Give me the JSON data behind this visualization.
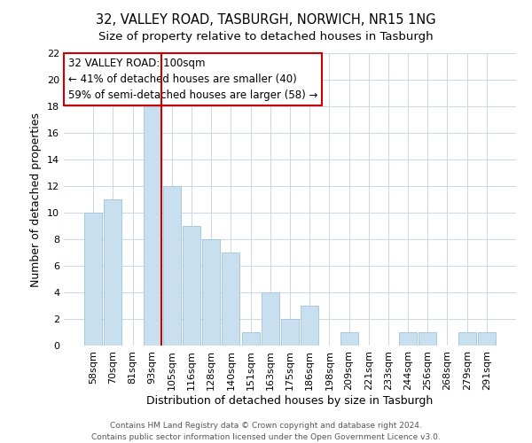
{
  "title": "32, VALLEY ROAD, TASBURGH, NORWICH, NR15 1NG",
  "subtitle": "Size of property relative to detached houses in Tasburgh",
  "xlabel": "Distribution of detached houses by size in Tasburgh",
  "ylabel": "Number of detached properties",
  "bar_labels": [
    "58sqm",
    "70sqm",
    "81sqm",
    "93sqm",
    "105sqm",
    "116sqm",
    "128sqm",
    "140sqm",
    "151sqm",
    "163sqm",
    "175sqm",
    "186sqm",
    "198sqm",
    "209sqm",
    "221sqm",
    "233sqm",
    "244sqm",
    "256sqm",
    "268sqm",
    "279sqm",
    "291sqm"
  ],
  "bar_values": [
    10,
    11,
    0,
    18,
    12,
    9,
    8,
    7,
    1,
    4,
    2,
    3,
    0,
    1,
    0,
    0,
    1,
    1,
    0,
    1,
    1
  ],
  "bar_color": "#c8dff0",
  "bar_edge_color": "#a0c4e0",
  "vline_after_index": 3,
  "vline_color": "#cc0000",
  "ylim": [
    0,
    22
  ],
  "yticks": [
    0,
    2,
    4,
    6,
    8,
    10,
    12,
    14,
    16,
    18,
    20,
    22
  ],
  "annotation_title": "32 VALLEY ROAD: 100sqm",
  "annotation_line1": "← 41% of detached houses are smaller (40)",
  "annotation_line2": "59% of semi-detached houses are larger (58) →",
  "footer_line1": "Contains HM Land Registry data © Crown copyright and database right 2024.",
  "footer_line2": "Contains public sector information licensed under the Open Government Licence v3.0.",
  "background_color": "#ffffff",
  "grid_color": "#c8d8e8",
  "title_fontsize": 10.5,
  "subtitle_fontsize": 9.5,
  "annotation_fontsize": 8.5,
  "axis_fontsize": 8,
  "footer_fontsize": 6.5
}
